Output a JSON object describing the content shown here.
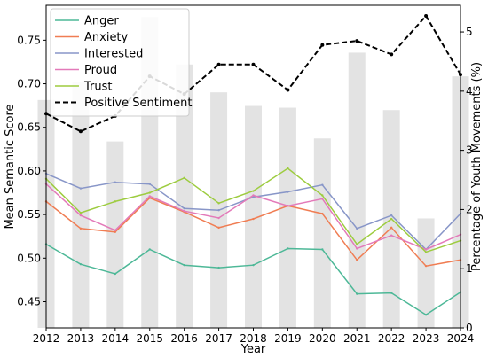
{
  "chart_data": {
    "type": "line",
    "title": "",
    "xlabel": "Year",
    "ylabel": "Mean Semantic Score",
    "y2label": "Percentage of Youth Movements (%)",
    "x": [
      2012,
      2013,
      2014,
      2015,
      2016,
      2017,
      2018,
      2019,
      2020,
      2021,
      2022,
      2023,
      2024
    ],
    "ylim": [
      0.42,
      0.79
    ],
    "yticks": [
      0.45,
      0.5,
      0.55,
      0.6,
      0.65,
      0.7,
      0.75
    ],
    "y2lim": [
      0,
      5.45
    ],
    "y2ticks": [
      0,
      1,
      2,
      3,
      4,
      5
    ],
    "legend_position": "top-left",
    "bars": {
      "axis": "y2",
      "color": "#e3e3e3",
      "values": [
        3.85,
        4.15,
        3.15,
        5.25,
        4.45,
        3.98,
        3.75,
        3.72,
        3.2,
        4.65,
        3.68,
        1.85,
        4.25
      ]
    },
    "series": [
      {
        "name": "Anger",
        "color": "#4db897",
        "axis": "y",
        "style": "solid",
        "values": [
          0.516,
          0.493,
          0.482,
          0.51,
          0.492,
          0.489,
          0.492,
          0.511,
          0.51,
          0.459,
          0.46,
          0.435,
          0.461
        ]
      },
      {
        "name": "Anxiety",
        "color": "#f07d53",
        "axis": "y",
        "style": "solid",
        "values": [
          0.565,
          0.534,
          0.53,
          0.569,
          0.553,
          0.535,
          0.545,
          0.56,
          0.551,
          0.498,
          0.535,
          0.491,
          0.498
        ]
      },
      {
        "name": "Interested",
        "color": "#8896c8",
        "axis": "y",
        "style": "solid",
        "values": [
          0.597,
          0.58,
          0.587,
          0.585,
          0.557,
          0.555,
          0.57,
          0.576,
          0.584,
          0.534,
          0.549,
          0.51,
          0.551
        ]
      },
      {
        "name": "Proud",
        "color": "#e37ab9",
        "axis": "y",
        "style": "solid",
        "values": [
          0.585,
          0.549,
          0.532,
          0.571,
          0.554,
          0.546,
          0.572,
          0.56,
          0.568,
          0.511,
          0.526,
          0.51,
          0.527
        ]
      },
      {
        "name": "Trust",
        "color": "#9dcc3f",
        "axis": "y",
        "style": "solid",
        "values": [
          0.591,
          0.552,
          0.565,
          0.575,
          0.592,
          0.563,
          0.577,
          0.603,
          0.572,
          0.516,
          0.545,
          0.507,
          0.52
        ]
      },
      {
        "name": "Positive Sentiment",
        "color": "#000000",
        "axis": "y2",
        "style": "dashed",
        "values": [
          3.62,
          3.32,
          3.58,
          4.25,
          3.95,
          4.45,
          4.45,
          4.02,
          4.78,
          4.85,
          4.62,
          5.27,
          4.28
        ]
      }
    ]
  }
}
